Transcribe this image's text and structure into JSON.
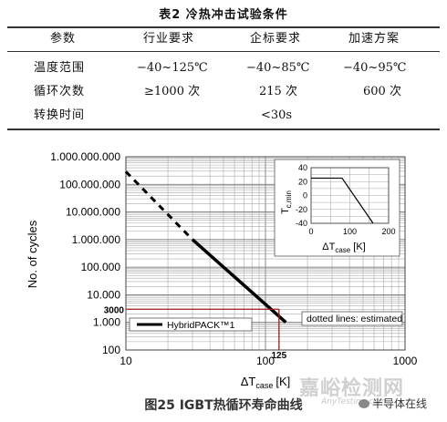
{
  "table": {
    "title": "表2  冷热冲击试验条件",
    "headers": [
      "参数",
      "行业要求",
      "企标要求",
      "加速方案"
    ],
    "rows": [
      [
        "温度范围",
        "−40~125℃",
        "−40~85℃",
        "−40~95℃"
      ],
      [
        "循环次数",
        "≥1000 次",
        "215 次",
        "600 次"
      ],
      [
        "转换时间",
        "<30s",
        "",
        ""
      ]
    ]
  },
  "figure": {
    "caption": "图25  IGBT热循环寿命曲线",
    "watermark": "嘉峪检测网",
    "watermark_sub": "AnyTesting.com",
    "source_tag": "半导体在线"
  },
  "chart_data": [
    {
      "type": "line",
      "xscale": "log",
      "yscale": "log",
      "xlim": [
        10,
        1000
      ],
      "ylim": [
        100,
        1000000000
      ],
      "xlabel": "ΔT",
      "xlabel_sub": "case",
      "xlabel_unit": "[K]",
      "ylabel": "No. of cycles",
      "x_ticks": [
        "10",
        "100",
        "1000"
      ],
      "y_ticks": [
        "100",
        "1.000",
        "10.000",
        "100.000",
        "1.000.000",
        "10.000.000",
        "100.000.000",
        "1.000.000.000"
      ],
      "grid": true,
      "legend_placement": "bottom-left",
      "series": [
        {
          "name": "HybridPACK™1",
          "points": [
            [
              30,
              1000000
            ],
            [
              140,
              1000
            ]
          ],
          "style": "solid"
        },
        {
          "name": "",
          "points": [
            [
              10,
              290000000
            ],
            [
              30,
              1000000
            ]
          ],
          "style": "dotted"
        }
      ],
      "annotations": {
        "estimated_note": "dotted lines: estimated",
        "ref_x_label": "125",
        "ref_x": 125,
        "ref_y_label": "3000",
        "ref_y": 3000
      }
    },
    {
      "type": "line",
      "xlim": [
        0,
        200
      ],
      "ylim": [
        -40,
        40
      ],
      "x_ticks": [
        "0",
        "100",
        "200"
      ],
      "y_ticks": [
        "40",
        "20",
        "0",
        "-20",
        "-40"
      ],
      "xlabel": "ΔT",
      "xlabel_sub": "case",
      "xlabel_unit": "[K]",
      "ylabel": "T",
      "ylabel_sub": "c,min",
      "grid": true,
      "series": [
        {
          "name": "",
          "points": [
            [
              0,
              25
            ],
            [
              80,
              25
            ],
            [
              160,
              -40
            ]
          ]
        }
      ]
    }
  ]
}
